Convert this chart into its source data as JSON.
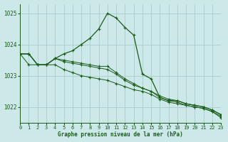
{
  "title": "Graphe pression niveau de la mer (hPa)",
  "bg_color": "#cce8e8",
  "grid_color": "#aacccc",
  "line_color": "#1a5c1a",
  "xlim": [
    0,
    23
  ],
  "ylim": [
    1021.5,
    1025.3
  ],
  "yticks": [
    1022,
    1023,
    1024,
    1025
  ],
  "xticks": [
    0,
    1,
    2,
    3,
    4,
    5,
    6,
    7,
    8,
    9,
    10,
    11,
    12,
    13,
    14,
    15,
    16,
    17,
    18,
    19,
    20,
    21,
    22,
    23
  ],
  "series": [
    [
      1023.7,
      1023.7,
      1023.35,
      1023.35,
      1023.55,
      1023.7,
      1023.8,
      1024.0,
      1024.2,
      1024.5,
      1025.0,
      1024.85,
      1024.55,
      1024.3,
      1023.05,
      1022.9,
      1022.3,
      1022.2,
      1022.2,
      1022.1,
      1022.05,
      1022.0,
      1021.9,
      1021.75
    ],
    [
      1023.7,
      1023.7,
      1023.35,
      1023.35,
      1023.55,
      1023.5,
      1023.45,
      1023.4,
      1023.35,
      1023.3,
      1023.3,
      1023.1,
      1022.9,
      1022.75,
      1022.6,
      1022.5,
      1022.35,
      1022.25,
      1022.2,
      1022.1,
      1022.05,
      1022.0,
      1021.9,
      1021.75
    ],
    [
      1023.7,
      1023.7,
      1023.35,
      1023.35,
      1023.55,
      1023.45,
      1023.4,
      1023.35,
      1023.3,
      1023.25,
      1023.2,
      1023.05,
      1022.85,
      1022.7,
      1022.6,
      1022.5,
      1022.3,
      1022.2,
      1022.15,
      1022.05,
      1022.0,
      1021.95,
      1021.85,
      1021.7
    ],
    [
      1023.7,
      1023.35,
      1023.35,
      1023.35,
      1023.35,
      1023.2,
      1023.1,
      1023.0,
      1022.95,
      1022.9,
      1022.85,
      1022.75,
      1022.65,
      1022.55,
      1022.5,
      1022.4,
      1022.25,
      1022.15,
      1022.1,
      1022.05,
      1022.0,
      1021.95,
      1021.85,
      1021.65
    ]
  ]
}
